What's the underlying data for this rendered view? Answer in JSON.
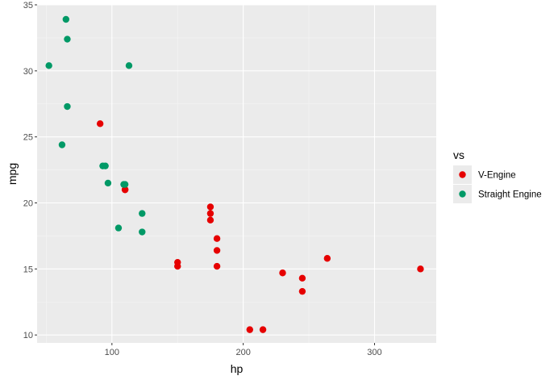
{
  "chart_data": {
    "type": "scatter",
    "xlabel": "hp",
    "ylabel": "mpg",
    "xlim": [
      43,
      347
    ],
    "ylim": [
      9.4,
      35
    ],
    "x_ticks": [
      100,
      200,
      300
    ],
    "y_ticks": [
      10,
      15,
      20,
      25,
      30,
      35
    ],
    "x_tick_labels": [
      "100",
      "200",
      "300"
    ],
    "y_tick_labels": [
      "10",
      "15",
      "20",
      "25",
      "30",
      "35"
    ],
    "grid": true,
    "legend": {
      "title": "vs",
      "position": "right"
    },
    "series": [
      {
        "name": "V-Engine",
        "color": "#e60000",
        "points": [
          {
            "x": 110,
            "y": 21.0
          },
          {
            "x": 110,
            "y": 21.0
          },
          {
            "x": 175,
            "y": 18.7
          },
          {
            "x": 245,
            "y": 14.3
          },
          {
            "x": 180,
            "y": 16.4
          },
          {
            "x": 180,
            "y": 17.3
          },
          {
            "x": 180,
            "y": 15.2
          },
          {
            "x": 205,
            "y": 10.4
          },
          {
            "x": 215,
            "y": 10.4
          },
          {
            "x": 230,
            "y": 14.7
          },
          {
            "x": 150,
            "y": 15.5
          },
          {
            "x": 150,
            "y": 15.2
          },
          {
            "x": 245,
            "y": 13.3
          },
          {
            "x": 175,
            "y": 19.2
          },
          {
            "x": 91,
            "y": 26.0
          },
          {
            "x": 264,
            "y": 15.8
          },
          {
            "x": 175,
            "y": 19.7
          },
          {
            "x": 335,
            "y": 15.0
          }
        ]
      },
      {
        "name": "Straight Engine",
        "color": "#009966",
        "points": [
          {
            "x": 93,
            "y": 22.8
          },
          {
            "x": 110,
            "y": 21.4
          },
          {
            "x": 105,
            "y": 18.1
          },
          {
            "x": 62,
            "y": 24.4
          },
          {
            "x": 95,
            "y": 22.8
          },
          {
            "x": 123,
            "y": 19.2
          },
          {
            "x": 123,
            "y": 17.8
          },
          {
            "x": 66,
            "y": 32.4
          },
          {
            "x": 52,
            "y": 30.4
          },
          {
            "x": 65,
            "y": 33.9
          },
          {
            "x": 97,
            "y": 21.5
          },
          {
            "x": 66,
            "y": 27.3
          },
          {
            "x": 113,
            "y": 30.4
          },
          {
            "x": 109,
            "y": 21.4
          }
        ]
      }
    ]
  }
}
